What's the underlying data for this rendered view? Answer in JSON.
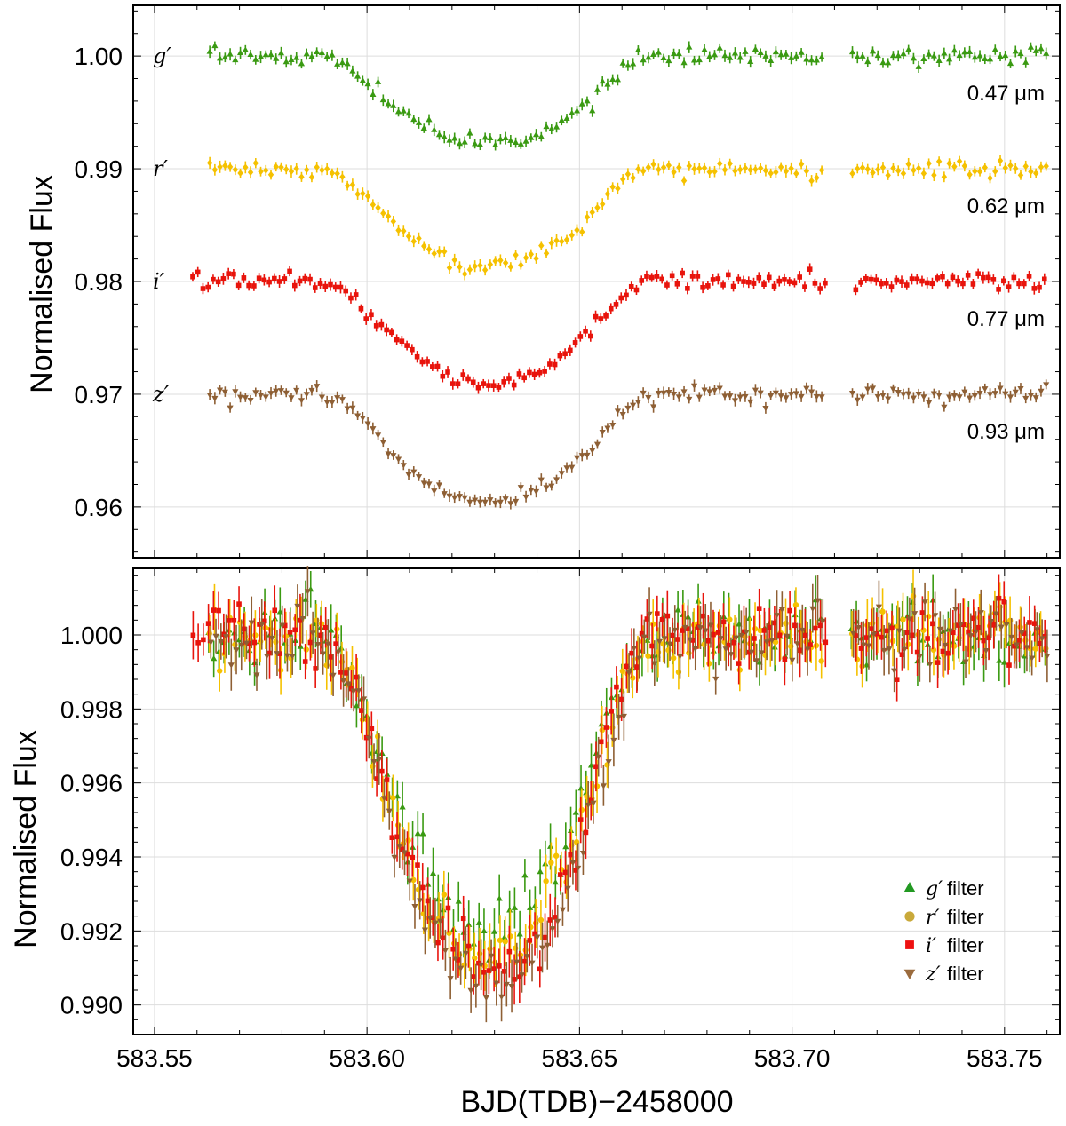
{
  "chart_data": [
    {
      "type": "scatter",
      "panel": "top",
      "ylabel": "Normalised Flux",
      "xlabel": "",
      "xlim": [
        583.545,
        583.763
      ],
      "ylim": [
        0.9555,
        1.0045
      ],
      "x_ticks": [
        583.55,
        583.6,
        583.65,
        583.7,
        583.75
      ],
      "y_ticks": [
        0.96,
        0.97,
        0.98,
        0.99,
        1.0
      ],
      "y_tick_labels": [
        "0.96",
        "0.97",
        "0.98",
        "0.99",
        "1.00"
      ],
      "grid": true,
      "offsets_note_visible": false,
      "series": [
        {
          "name": "g′",
          "wavelength_label": "0.47 μm",
          "color": "#3a9a12",
          "marker": "triangle-up",
          "baseline": 1.0,
          "depth": 0.0078,
          "x_start": 583.563,
          "x_end": 583.76
        },
        {
          "name": "r′",
          "wavelength_label": "0.62 μm",
          "color": "#f5c100",
          "marker": "diamond",
          "baseline": 0.99,
          "depth": 0.0085,
          "x_start": 583.563,
          "x_end": 583.76
        },
        {
          "name": "i′",
          "wavelength_label": "0.77 μm",
          "color": "#e8140c",
          "marker": "square",
          "baseline": 0.98,
          "depth": 0.009,
          "x_start": 583.559,
          "x_end": 583.76
        },
        {
          "name": "z′",
          "wavelength_label": "0.93 μm",
          "color": "#8e5f34",
          "marker": "triangle-down",
          "baseline": 0.97,
          "depth": 0.0095,
          "x_start": 583.563,
          "x_end": 583.76
        }
      ]
    },
    {
      "type": "scatter",
      "panel": "bottom",
      "xlabel": "BJD(TDB)−2458000",
      "ylabel": "Normalised Flux",
      "xlim": [
        583.545,
        583.763
      ],
      "ylim": [
        0.9892,
        1.0018
      ],
      "x_ticks": [
        583.55,
        583.6,
        583.65,
        583.7,
        583.75
      ],
      "x_tick_labels": [
        "583.55",
        "583.60",
        "583.65",
        "583.70",
        "583.75"
      ],
      "y_ticks": [
        0.99,
        0.992,
        0.994,
        0.996,
        0.998,
        1.0
      ],
      "y_tick_labels": [
        "0.990",
        "0.992",
        "0.994",
        "0.996",
        "0.998",
        "1.000"
      ],
      "grid": true,
      "legend_position": "bottom-right",
      "transit": {
        "ingress_start": 583.588,
        "ingress_end": 583.618,
        "egress_start": 583.64,
        "egress_end": 583.668,
        "mid": 583.629
      },
      "gap": [
        583.708,
        583.714
      ],
      "series": [
        {
          "name": "g′",
          "legend": "filter",
          "color": "#3a9a12",
          "legend_color": "#229922",
          "marker": "triangle-up",
          "depth": 0.0078
        },
        {
          "name": "r′",
          "legend": "filter",
          "color": "#f5c100",
          "legend_color": "#c9a93a",
          "marker": "circle",
          "depth": 0.0085
        },
        {
          "name": "i′",
          "legend": "filter",
          "color": "#e8140c",
          "legend_color": "#ee1111",
          "marker": "square",
          "depth": 0.009
        },
        {
          "name": "z′",
          "legend": "filter",
          "color": "#8e5f34",
          "legend_color": "#9b6b3d",
          "marker": "triangle-down",
          "depth": 0.0095
        }
      ]
    }
  ]
}
